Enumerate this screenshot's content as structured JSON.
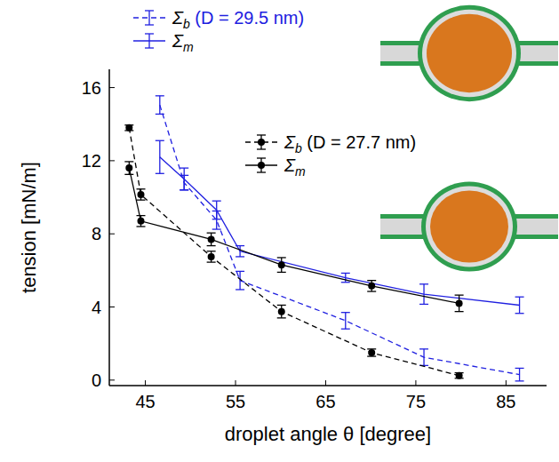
{
  "chart_data": {
    "type": "line",
    "x_label": "droplet angle θ [degree]",
    "y_label": "tension [mN/m]",
    "xlim": [
      41,
      89.5
    ],
    "ylim": [
      -0.3,
      17
    ],
    "xticks": [
      45,
      55,
      65,
      75,
      85
    ],
    "yticks": [
      0,
      4,
      8,
      12,
      16
    ],
    "legend": "top",
    "series": [
      {
        "name": "Σb (D = 29.5 nm)",
        "color": "#2020e0",
        "line_style": "dashed",
        "marker": "none",
        "x": [
          46.6,
          49.3,
          52.9,
          55.5,
          67.2,
          75.9,
          86.5
        ],
        "values": [
          15.05,
          10.8,
          8.75,
          5.45,
          3.25,
          1.25,
          0.3
        ],
        "errors": [
          0.5,
          0.4,
          0.5,
          0.5,
          0.45,
          0.45,
          0.35
        ]
      },
      {
        "name": "Σm",
        "color": "#2020e0",
        "line_style": "solid",
        "marker": "none",
        "x": [
          46.6,
          49.3,
          52.9,
          55.5,
          67.2,
          75.9,
          86.5
        ],
        "values": [
          12.2,
          11.0,
          9.3,
          7.05,
          5.6,
          4.7,
          4.1
        ],
        "errors": [
          0.9,
          0.6,
          0.5,
          0.3,
          0.25,
          0.55,
          0.45
        ]
      },
      {
        "name": "Σb (D = 27.7 nm)",
        "color": "#000000",
        "line_style": "dashed",
        "marker": "circle",
        "x": [
          43.2,
          44.5,
          52.3,
          60.1,
          70.1,
          79.8
        ],
        "values": [
          13.8,
          10.15,
          6.75,
          3.75,
          1.5,
          0.25
        ],
        "errors": [
          0.15,
          0.3,
          0.3,
          0.35,
          0.2,
          0.15
        ]
      },
      {
        "name": "Σm",
        "color": "#000000",
        "line_style": "solid",
        "marker": "circle",
        "x": [
          43.2,
          44.5,
          52.3,
          60.1,
          70.1,
          79.8
        ],
        "values": [
          11.6,
          8.7,
          7.7,
          6.3,
          5.15,
          4.2
        ],
        "errors": [
          0.35,
          0.3,
          0.35,
          0.4,
          0.3,
          0.45
        ]
      }
    ]
  }
}
